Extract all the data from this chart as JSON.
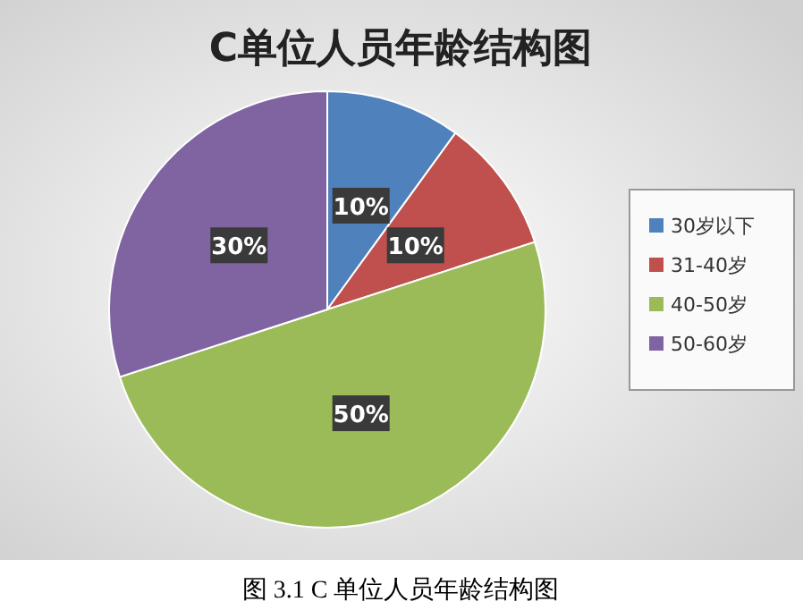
{
  "chart_data": {
    "type": "pie",
    "title": "C单位人员年龄结构图",
    "categories": [
      "30岁以下",
      "31-40岁",
      "40-50岁",
      "50-60岁"
    ],
    "values": [
      10,
      10,
      50,
      30
    ],
    "value_labels": [
      "10%",
      "10%",
      "50%",
      "30%"
    ],
    "colors": [
      "#4f81bd",
      "#c0504d",
      "#9bbb59",
      "#8064a2"
    ],
    "legend": "right",
    "annotations": [
      "图 3.1 C 单位人员年龄结构图"
    ]
  }
}
